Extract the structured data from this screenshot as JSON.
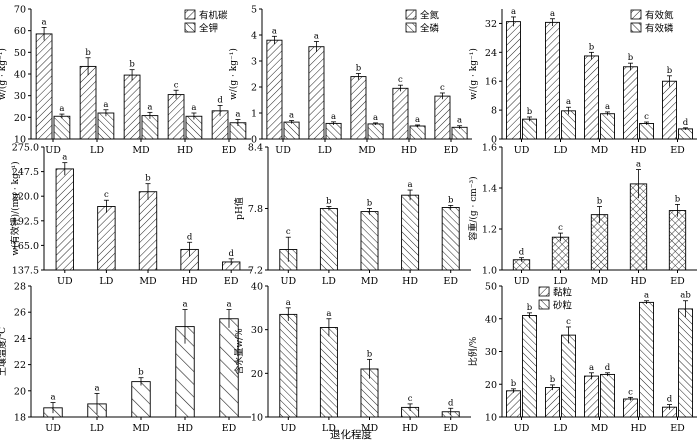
{
  "figure": {
    "xlabel": "退化程度"
  },
  "chart_data": [
    {
      "type": "bar",
      "id": "organic-carbon-potassium",
      "categories": [
        "UD",
        "LD",
        "MD",
        "HD",
        "ED"
      ],
      "ylabel": "w/(g · kg⁻¹)",
      "ylim": [
        10,
        70
      ],
      "yticks": [
        10,
        20,
        30,
        40,
        50,
        60,
        70
      ],
      "legend": "top-right",
      "series": [
        {
          "name": "有机碳",
          "pattern": "fwd",
          "values": [
            58.5,
            43.5,
            39.5,
            30.5,
            23.0
          ],
          "errors": [
            3.0,
            4.0,
            2.5,
            2.0,
            2.5
          ],
          "letters": [
            "a",
            "b",
            "b",
            "c",
            "d"
          ]
        },
        {
          "name": "全钾",
          "pattern": "back",
          "values": [
            20.5,
            22.0,
            20.8,
            20.5,
            17.5
          ],
          "errors": [
            1.0,
            1.5,
            1.5,
            1.5,
            1.5
          ],
          "letters": [
            "a",
            "a",
            "a",
            "a",
            "a"
          ]
        }
      ]
    },
    {
      "type": "bar",
      "id": "total-nitrogen-phosphorus",
      "categories": [
        "UD",
        "LD",
        "MD",
        "HD",
        "ED"
      ],
      "ylabel": "w/(g · kg⁻¹)",
      "ylim": [
        0,
        5
      ],
      "yticks": [
        0,
        1,
        2,
        3,
        4,
        5
      ],
      "legend": "top-right",
      "series": [
        {
          "name": "全氮",
          "pattern": "fwd",
          "values": [
            3.8,
            3.55,
            2.4,
            1.95,
            1.65
          ],
          "errors": [
            0.15,
            0.2,
            0.12,
            0.12,
            0.12
          ],
          "letters": [
            "a",
            "a",
            "b",
            "c",
            "c"
          ]
        },
        {
          "name": "全磷",
          "pattern": "back",
          "values": [
            0.65,
            0.6,
            0.58,
            0.5,
            0.45
          ],
          "errors": [
            0.06,
            0.06,
            0.04,
            0.04,
            0.06
          ],
          "letters": [
            "a",
            "a",
            "a",
            "a",
            "a"
          ]
        }
      ]
    },
    {
      "type": "bar",
      "id": "available-nitrogen-phosphorus",
      "categories": [
        "UD",
        "LD",
        "MD",
        "HD",
        "ED"
      ],
      "ylabel": "w/(g · kg⁻¹)",
      "ylim": [
        0,
        36
      ],
      "yticks": [
        0,
        8,
        16,
        24,
        32
      ],
      "legend": "top-right",
      "series": [
        {
          "name": "有效氮",
          "pattern": "fwd",
          "values": [
            32.5,
            32.3,
            23.0,
            20.0,
            16.0
          ],
          "errors": [
            1.3,
            1.0,
            1.0,
            1.0,
            1.5
          ],
          "letters": [
            "a",
            "a",
            "b",
            "b",
            "b"
          ]
        },
        {
          "name": "有效磷",
          "pattern": "back",
          "values": [
            5.5,
            7.8,
            7.0,
            4.3,
            2.8
          ],
          "errors": [
            0.6,
            1.0,
            0.5,
            0.4,
            0.3
          ],
          "letters": [
            "b",
            "a",
            "a",
            "c",
            "d"
          ]
        }
      ]
    },
    {
      "type": "bar",
      "id": "available-potassium",
      "categories": [
        "UD",
        "LD",
        "MD",
        "HD",
        "ED"
      ],
      "ylabel": "w(有效钾)/(mg · kg⁻¹)",
      "ylim": [
        137.5,
        275
      ],
      "yticks": [
        "137.5",
        "165.0",
        "192.5",
        "220.0",
        "247.5",
        "275.0"
      ],
      "series": [
        {
          "pattern": "fwd",
          "values": [
            250.5,
            208.5,
            225.0,
            160.5,
            146.5
          ],
          "errors": [
            7.0,
            7.0,
            9.0,
            8.0,
            3.5
          ],
          "letters": [
            "a",
            "c",
            "b",
            "d",
            "d"
          ]
        }
      ]
    },
    {
      "type": "bar",
      "id": "ph",
      "categories": [
        "UD",
        "LD",
        "MD",
        "HD",
        "ED"
      ],
      "ylabel": "pH值",
      "ylim": [
        7.2,
        8.4
      ],
      "yticks": [
        "7.2",
        "7.8",
        "8.4"
      ],
      "series": [
        {
          "pattern": "back",
          "values": [
            7.4,
            7.8,
            7.77,
            7.93,
            7.81
          ],
          "errors": [
            0.12,
            0.02,
            0.03,
            0.05,
            0.02
          ],
          "letters": [
            "c",
            "b",
            "b",
            "a",
            "b"
          ]
        }
      ]
    },
    {
      "type": "bar",
      "id": "bulk-density",
      "categories": [
        "UD",
        "LD",
        "MD",
        "HD",
        "ED"
      ],
      "ylabel": "容重/(g · cm⁻³)",
      "ylim": [
        1.0,
        1.6
      ],
      "yticks": [
        "1.0",
        "1.2",
        "1.4",
        "1.6"
      ],
      "series": [
        {
          "pattern": "cross",
          "values": [
            1.05,
            1.16,
            1.27,
            1.42,
            1.29
          ],
          "errors": [
            0.01,
            0.02,
            0.04,
            0.07,
            0.03
          ],
          "letters": [
            "d",
            "c",
            "b",
            "a",
            "b"
          ]
        }
      ]
    },
    {
      "type": "bar",
      "id": "soil-temperature",
      "categories": [
        "UD",
        "LD",
        "MD",
        "HD",
        "ED"
      ],
      "ylabel": "土壤温度/℃",
      "ylim": [
        18,
        28
      ],
      "yticks": [
        18,
        20,
        22,
        24,
        26,
        28
      ],
      "series": [
        {
          "pattern": "wide",
          "values": [
            18.7,
            19.0,
            20.7,
            24.9,
            25.5
          ],
          "errors": [
            0.4,
            0.8,
            0.3,
            1.3,
            0.7
          ],
          "letters": [
            "a",
            "a",
            "b",
            "a",
            "a"
          ]
        }
      ]
    },
    {
      "type": "bar",
      "id": "water-content",
      "categories": [
        "UD",
        "LD",
        "MD",
        "HD",
        "ED"
      ],
      "ylabel": "含水量w/%",
      "ylim": [
        10,
        40
      ],
      "yticks": [
        10,
        20,
        30,
        40
      ],
      "series": [
        {
          "pattern": "back",
          "values": [
            33.5,
            30.5,
            21.0,
            12.2,
            11.2
          ],
          "errors": [
            1.5,
            2.0,
            2.2,
            0.8,
            0.8
          ],
          "letters": [
            "a",
            "a",
            "b",
            "c",
            "d"
          ]
        }
      ]
    },
    {
      "type": "bar",
      "id": "particle-ratio",
      "categories": [
        "UD",
        "LD",
        "MD",
        "HD",
        "ED"
      ],
      "ylabel": "比例/%",
      "ylim": [
        10,
        50
      ],
      "yticks": [
        10,
        20,
        30,
        40,
        50
      ],
      "legend": "top-center",
      "series": [
        {
          "name": "黏粒",
          "pattern": "fwd",
          "values": [
            18.0,
            19.0,
            22.5,
            15.5,
            13.0
          ],
          "errors": [
            0.6,
            0.8,
            1.0,
            0.5,
            0.8
          ],
          "letters": [
            "b",
            "b",
            "a",
            "c",
            "d"
          ]
        },
        {
          "name": "砂粒",
          "pattern": "back",
          "values": [
            41.0,
            35.0,
            23.0,
            45.0,
            43.0
          ],
          "errors": [
            0.8,
            2.5,
            0.5,
            0.5,
            2.5
          ],
          "letters": [
            "b",
            "c",
            "d",
            "a",
            "ab"
          ]
        }
      ]
    }
  ]
}
